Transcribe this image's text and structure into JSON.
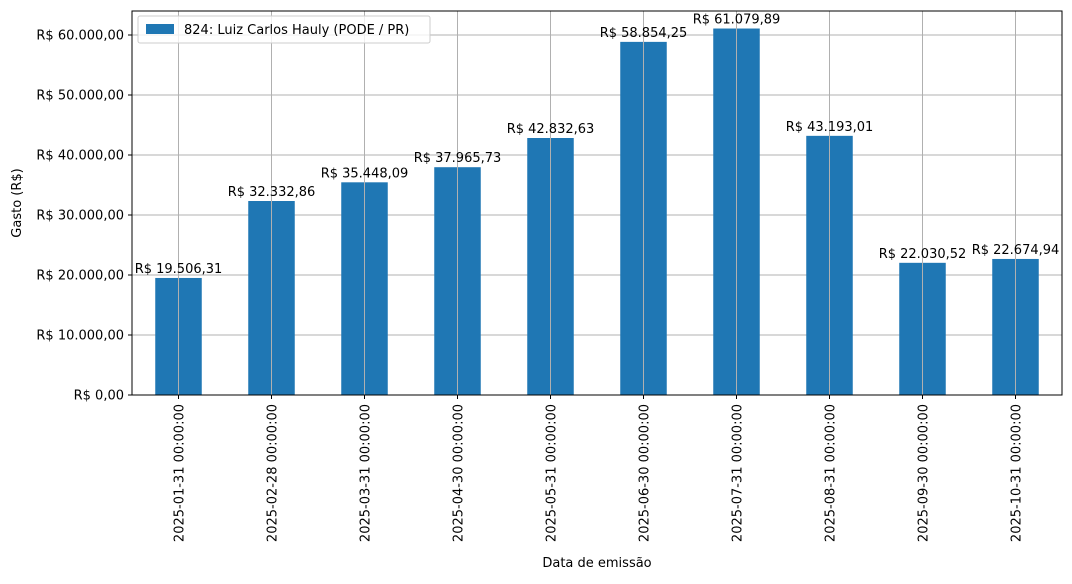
{
  "chart_data": {
    "type": "bar",
    "xlabel": "Data de emissão",
    "ylabel": "Gasto (R$)",
    "ylim": [
      0,
      64000
    ],
    "yticks": [
      0,
      10000,
      20000,
      30000,
      40000,
      50000,
      60000
    ],
    "ytick_labels": [
      "R$ 0,00",
      "R$ 10.000,00",
      "R$ 20.000,00",
      "R$ 30.000,00",
      "R$ 40.000,00",
      "R$ 50.000,00",
      "R$ 60.000,00"
    ],
    "grid": true,
    "legend_position": "top-left",
    "categories": [
      "2025-01-31 00:00:00",
      "2025-02-28 00:00:00",
      "2025-03-31 00:00:00",
      "2025-04-30 00:00:00",
      "2025-05-31 00:00:00",
      "2025-06-30 00:00:00",
      "2025-07-31 00:00:00",
      "2025-08-31 00:00:00",
      "2025-09-30 00:00:00",
      "2025-10-31 00:00:00"
    ],
    "series": [
      {
        "name": "824: Luiz Carlos Hauly (PODE / PR)",
        "color": "#1f77b4",
        "values": [
          19506.31,
          32332.86,
          35448.09,
          37965.73,
          42832.63,
          58854.25,
          61079.89,
          43193.01,
          22030.52,
          22674.94
        ],
        "labels": [
          "R$ 19.506,31",
          "R$ 32.332,86",
          "R$ 35.448,09",
          "R$ 37.965,73",
          "R$ 42.832,63",
          "R$ 58.854,25",
          "R$ 61.079,89",
          "R$ 43.193,01",
          "R$ 22.030,52",
          "R$ 22.674,94"
        ]
      }
    ]
  }
}
